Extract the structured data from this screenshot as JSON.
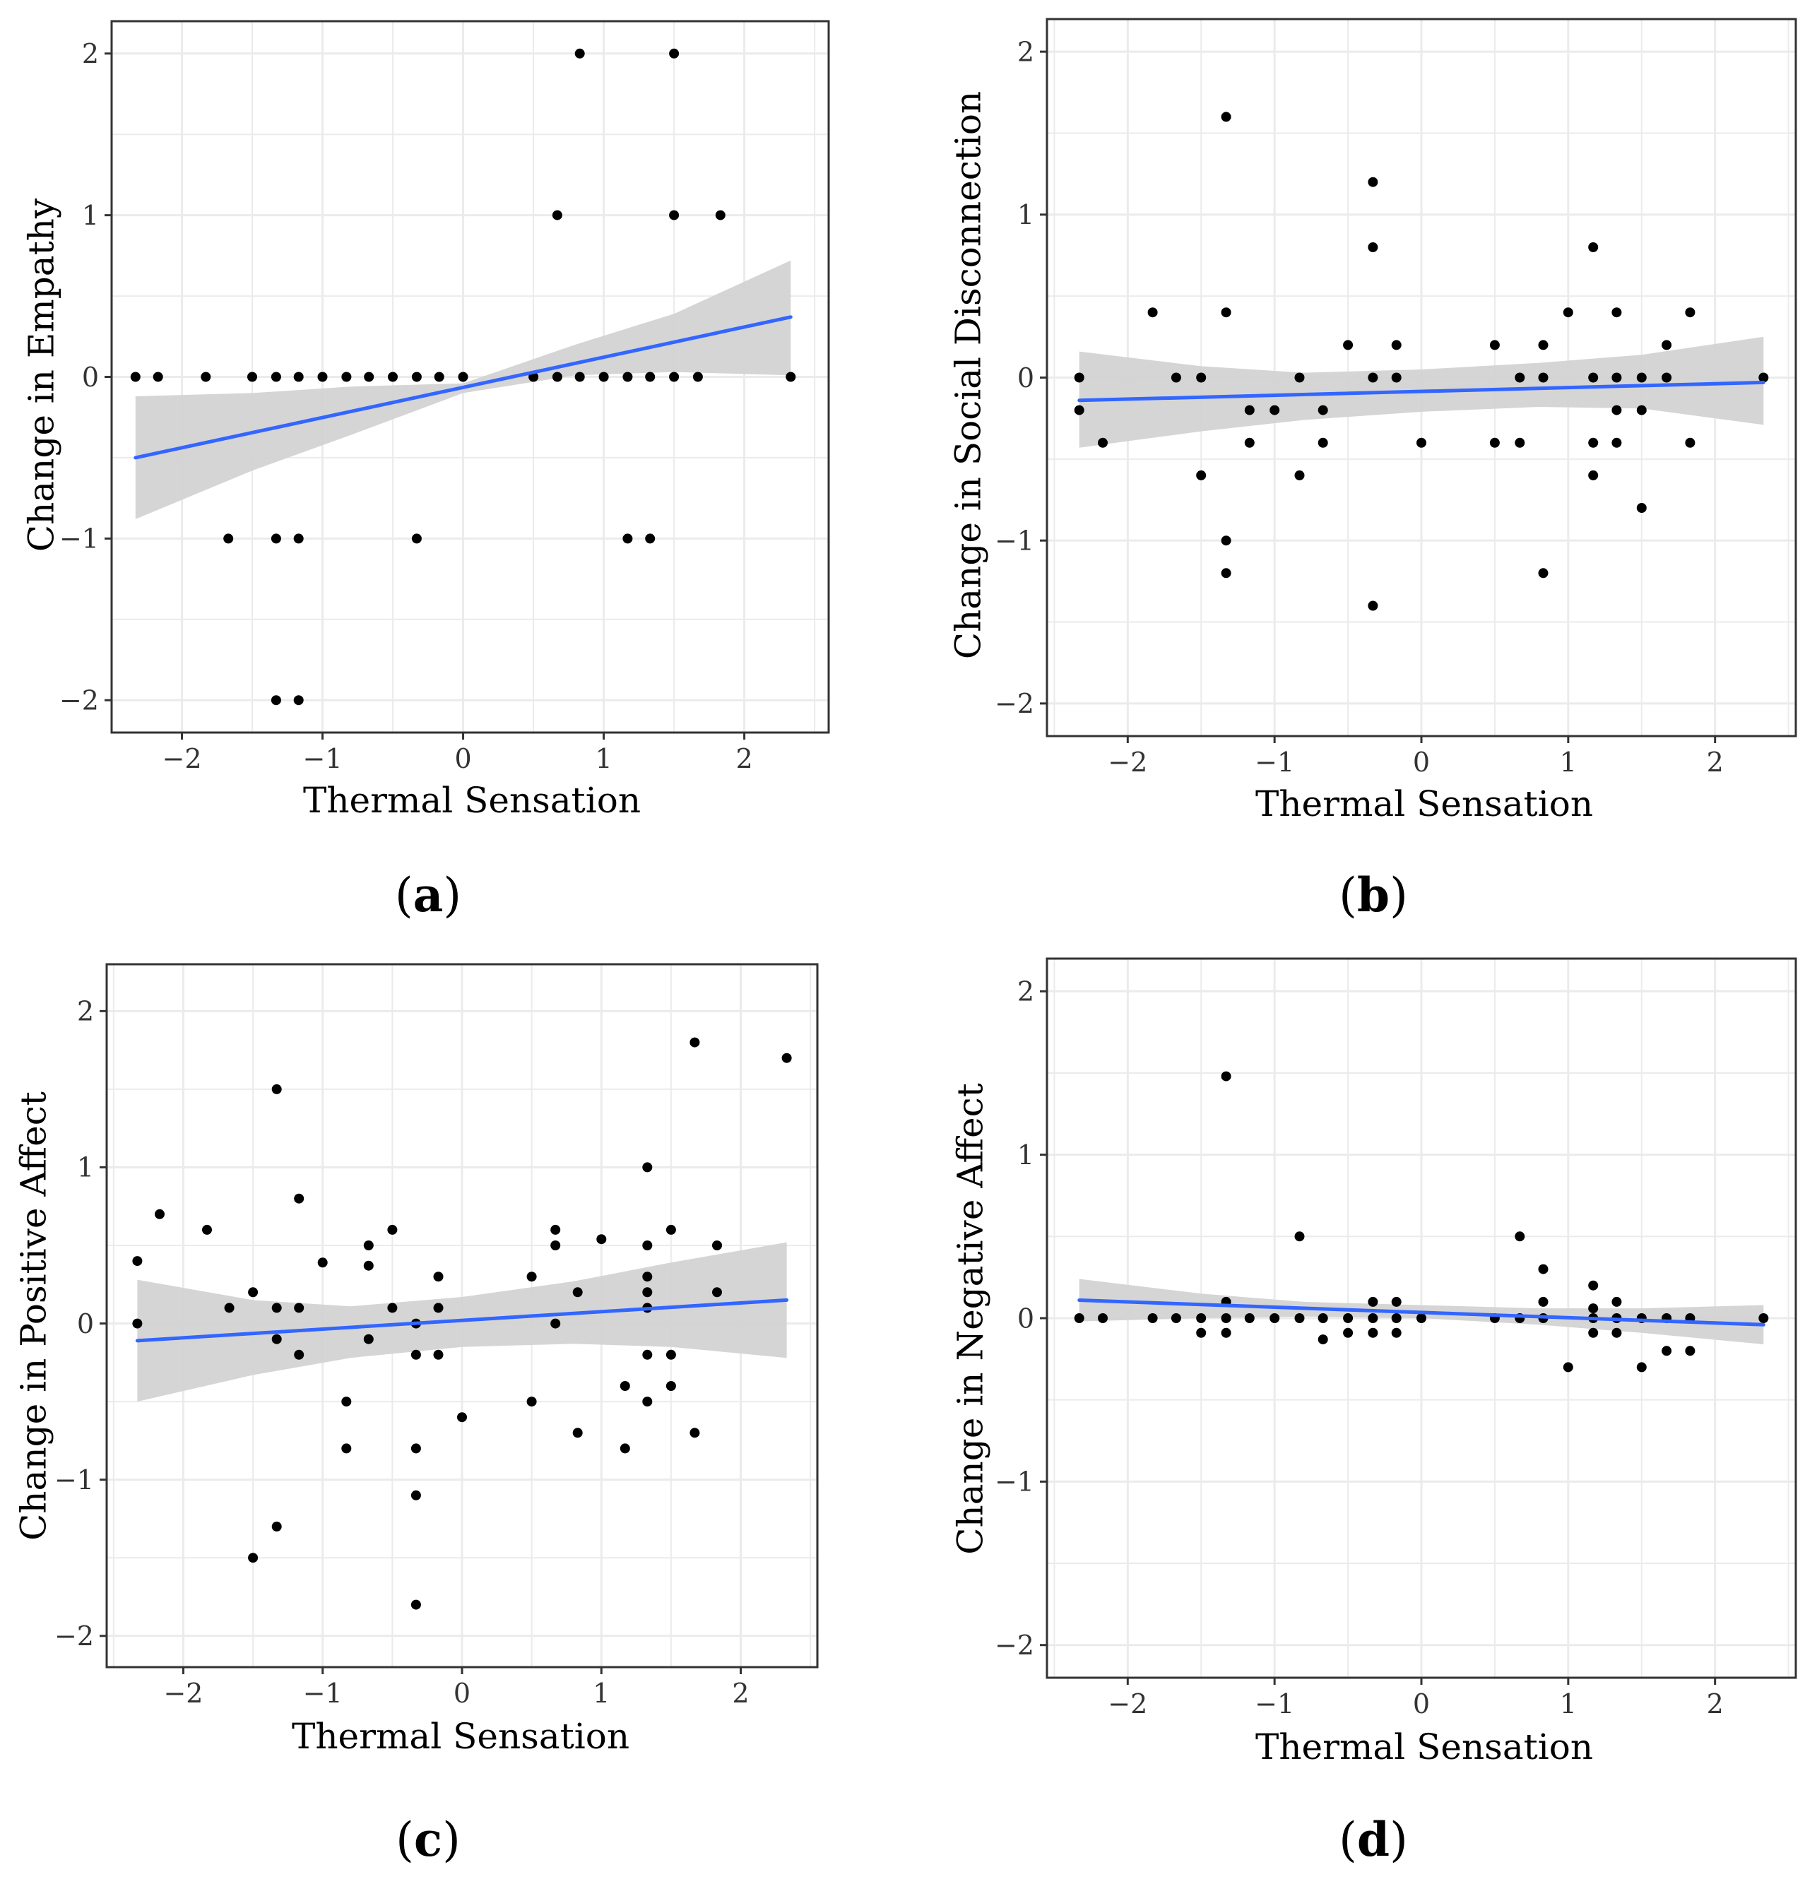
{
  "figure": {
    "panel_labels": [
      "(a)",
      "(b)",
      "(c)",
      "(d)"
    ],
    "colors": {
      "fit_line": "#3366FF",
      "confidence_band": "#D3D3D3",
      "points": "#000000",
      "grid": "#EBEBEB",
      "panel_border": "#333333"
    }
  },
  "chart_data": [
    {
      "type": "scatter",
      "panel": "(a)",
      "title": "",
      "xlabel": "Thermal Sensation",
      "ylabel": "Change in Empathy",
      "xlim": [
        -2.5,
        2.6
      ],
      "ylim": [
        -2.2,
        2.2
      ],
      "xticks": [
        -2,
        -1,
        0,
        1,
        2
      ],
      "yticks": [
        -2,
        -1,
        0,
        1,
        2
      ],
      "xtick_labels": [
        "−2",
        "−1",
        "0",
        "1",
        "2"
      ],
      "ytick_labels": [
        "−2",
        "−1",
        "0",
        "1",
        "2"
      ],
      "grid": true,
      "points": [
        [
          -2.33,
          0
        ],
        [
          -2.17,
          0
        ],
        [
          -1.83,
          0
        ],
        [
          -1.5,
          0
        ],
        [
          -1.33,
          0
        ],
        [
          -1.17,
          0
        ],
        [
          -1.0,
          0
        ],
        [
          -0.83,
          0
        ],
        [
          -0.67,
          0
        ],
        [
          -0.5,
          0
        ],
        [
          -0.33,
          0
        ],
        [
          -0.17,
          0
        ],
        [
          0,
          0
        ],
        [
          0.5,
          0
        ],
        [
          0.67,
          0
        ],
        [
          0.83,
          0
        ],
        [
          1.0,
          0
        ],
        [
          1.17,
          0
        ],
        [
          1.33,
          0
        ],
        [
          1.5,
          0
        ],
        [
          1.67,
          0
        ],
        [
          2.33,
          0
        ],
        [
          0.83,
          2
        ],
        [
          1.5,
          2
        ],
        [
          0.67,
          1
        ],
        [
          1.5,
          1
        ],
        [
          1.83,
          1
        ],
        [
          -1.67,
          -1
        ],
        [
          -1.33,
          -1
        ],
        [
          -1.17,
          -1
        ],
        [
          -0.33,
          -1
        ],
        [
          1.17,
          -1
        ],
        [
          1.33,
          -1
        ],
        [
          -1.33,
          -2
        ],
        [
          -1.17,
          -2
        ]
      ],
      "fit": {
        "x": [
          -2.33,
          2.33
        ],
        "y": [
          -0.5,
          0.37
        ]
      },
      "band": {
        "x": [
          -2.33,
          -1.5,
          -0.8,
          0,
          0.8,
          1.5,
          2.33
        ],
        "lower": [
          -0.88,
          -0.58,
          -0.36,
          -0.1,
          0.01,
          0.03,
          0.01
        ],
        "upper": [
          -0.12,
          -0.1,
          -0.06,
          -0.04,
          0.2,
          0.39,
          0.72
        ]
      }
    },
    {
      "type": "scatter",
      "panel": "(b)",
      "title": "",
      "xlabel": "Thermal Sensation",
      "ylabel": "Change in Social Disconnection",
      "xlim": [
        -2.55,
        2.55
      ],
      "ylim": [
        -2.2,
        2.2
      ],
      "xticks": [
        -2,
        -1,
        0,
        1,
        2
      ],
      "yticks": [
        -2,
        -1,
        0,
        1,
        2
      ],
      "xtick_labels": [
        "−2",
        "−1",
        "0",
        "1",
        "2"
      ],
      "ytick_labels": [
        "−2",
        "−1",
        "0",
        "1",
        "2"
      ],
      "grid": true,
      "points": [
        [
          -2.33,
          0
        ],
        [
          -2.33,
          -0.2
        ],
        [
          -2.17,
          -0.4
        ],
        [
          -1.83,
          0.4
        ],
        [
          -1.67,
          0
        ],
        [
          -1.5,
          0
        ],
        [
          -1.5,
          -0.6
        ],
        [
          -1.33,
          1.6
        ],
        [
          -1.33,
          0.4
        ],
        [
          -1.33,
          -1.0
        ],
        [
          -1.33,
          -1.2
        ],
        [
          -1.17,
          -0.2
        ],
        [
          -1.17,
          -0.4
        ],
        [
          -1.0,
          -0.2
        ],
        [
          -0.83,
          0
        ],
        [
          -0.83,
          -0.6
        ],
        [
          -0.67,
          -0.2
        ],
        [
          -0.67,
          -0.4
        ],
        [
          -0.5,
          0.2
        ],
        [
          -0.33,
          1.2
        ],
        [
          -0.33,
          0.8
        ],
        [
          -0.33,
          0
        ],
        [
          -0.33,
          -1.4
        ],
        [
          -0.17,
          0.2
        ],
        [
          -0.17,
          0
        ],
        [
          0,
          -0.4
        ],
        [
          0.5,
          0.2
        ],
        [
          0.5,
          -0.4
        ],
        [
          0.67,
          0
        ],
        [
          0.67,
          -0.4
        ],
        [
          0.83,
          0.2
        ],
        [
          0.83,
          0
        ],
        [
          0.83,
          -1.2
        ],
        [
          1.0,
          0.4
        ],
        [
          1.17,
          0.8
        ],
        [
          1.17,
          0
        ],
        [
          1.17,
          -0.4
        ],
        [
          1.17,
          -0.6
        ],
        [
          1.33,
          0.4
        ],
        [
          1.33,
          0
        ],
        [
          1.33,
          -0.2
        ],
        [
          1.33,
          -0.4
        ],
        [
          1.5,
          0
        ],
        [
          1.5,
          -0.2
        ],
        [
          1.5,
          -0.8
        ],
        [
          1.67,
          0.2
        ],
        [
          1.67,
          0
        ],
        [
          1.83,
          0.4
        ],
        [
          1.83,
          -0.4
        ],
        [
          2.33,
          0
        ]
      ],
      "fit": {
        "x": [
          -2.33,
          2.33
        ],
        "y": [
          -0.14,
          -0.03
        ]
      },
      "band": {
        "x": [
          -2.33,
          -1.5,
          -0.8,
          0,
          0.8,
          1.5,
          2.33
        ],
        "lower": [
          -0.43,
          -0.33,
          -0.26,
          -0.21,
          -0.18,
          -0.19,
          -0.29
        ],
        "upper": [
          0.16,
          0.07,
          0.03,
          0.05,
          0.09,
          0.14,
          0.25
        ]
      }
    },
    {
      "type": "scatter",
      "panel": "(c)",
      "title": "",
      "xlabel": "Thermal Sensation",
      "ylabel": "Change in Positive Affect",
      "xlim": [
        -2.55,
        2.55
      ],
      "ylim": [
        -2.2,
        2.3
      ],
      "xticks": [
        -2,
        -1,
        0,
        1,
        2
      ],
      "yticks": [
        -2,
        -1,
        0,
        1,
        2
      ],
      "xtick_labels": [
        "−2",
        "−1",
        "0",
        "1",
        "2"
      ],
      "ytick_labels": [
        "−2",
        "−1",
        "0",
        "1",
        "2"
      ],
      "grid": true,
      "points": [
        [
          -2.33,
          0.4
        ],
        [
          -2.33,
          0
        ],
        [
          -2.17,
          0.7
        ],
        [
          -1.83,
          0.6
        ],
        [
          -1.67,
          0.1
        ],
        [
          -1.5,
          0.2
        ],
        [
          -1.5,
          -1.5
        ],
        [
          -1.33,
          1.5
        ],
        [
          -1.33,
          0.1
        ],
        [
          -1.33,
          -0.1
        ],
        [
          -1.33,
          -1.3
        ],
        [
          -1.17,
          0.8
        ],
        [
          -1.17,
          0.1
        ],
        [
          -1.17,
          -0.2
        ],
        [
          -1.0,
          0.39
        ],
        [
          -0.83,
          -0.5
        ],
        [
          -0.83,
          -0.8
        ],
        [
          -0.67,
          0.5
        ],
        [
          -0.67,
          0.37
        ],
        [
          -0.67,
          -0.1
        ],
        [
          -0.5,
          0.6
        ],
        [
          -0.5,
          0.1
        ],
        [
          -0.33,
          0
        ],
        [
          -0.33,
          -0.2
        ],
        [
          -0.33,
          -0.8
        ],
        [
          -0.33,
          -1.1
        ],
        [
          -0.33,
          -1.8
        ],
        [
          -0.17,
          0.3
        ],
        [
          -0.17,
          0.1
        ],
        [
          -0.17,
          -0.2
        ],
        [
          0,
          -0.6
        ],
        [
          0.5,
          0.3
        ],
        [
          0.5,
          -0.5
        ],
        [
          0.67,
          0.6
        ],
        [
          0.67,
          0.5
        ],
        [
          0.67,
          0
        ],
        [
          0.83,
          0.2
        ],
        [
          0.83,
          -0.7
        ],
        [
          1.0,
          0.54
        ],
        [
          1.17,
          -0.4
        ],
        [
          1.17,
          -0.8
        ],
        [
          1.33,
          1.0
        ],
        [
          1.33,
          0.5
        ],
        [
          1.33,
          0.3
        ],
        [
          1.33,
          0.2
        ],
        [
          1.33,
          0.1
        ],
        [
          1.33,
          -0.2
        ],
        [
          1.33,
          -0.5
        ],
        [
          1.5,
          0.6
        ],
        [
          1.5,
          -0.2
        ],
        [
          1.5,
          -0.4
        ],
        [
          1.67,
          1.8
        ],
        [
          1.67,
          -0.7
        ],
        [
          1.83,
          0.5
        ],
        [
          1.83,
          0.2
        ],
        [
          2.33,
          1.7
        ]
      ],
      "fit": {
        "x": [
          -2.33,
          2.33
        ],
        "y": [
          -0.11,
          0.15
        ]
      },
      "band": {
        "x": [
          -2.33,
          -1.5,
          -0.8,
          0,
          0.8,
          1.5,
          2.33
        ],
        "lower": [
          -0.5,
          -0.33,
          -0.22,
          -0.15,
          -0.13,
          -0.15,
          -0.22
        ],
        "upper": [
          0.28,
          0.15,
          0.11,
          0.17,
          0.27,
          0.39,
          0.52
        ]
      }
    },
    {
      "type": "scatter",
      "panel": "(d)",
      "title": "",
      "xlabel": "Thermal Sensation",
      "ylabel": "Change in Negative Affect",
      "xlim": [
        -2.55,
        2.55
      ],
      "ylim": [
        -2.2,
        2.2
      ],
      "xticks": [
        -2,
        -1,
        0,
        1,
        2
      ],
      "yticks": [
        -2,
        -1,
        0,
        1,
        2
      ],
      "xtick_labels": [
        "−2",
        "−1",
        "0",
        "1",
        "2"
      ],
      "ytick_labels": [
        "−2",
        "−1",
        "0",
        "1",
        "2"
      ],
      "grid": true,
      "points": [
        [
          -2.33,
          0
        ],
        [
          -2.17,
          0
        ],
        [
          -1.83,
          0
        ],
        [
          -1.67,
          0
        ],
        [
          -1.5,
          0
        ],
        [
          -1.5,
          -0.09
        ],
        [
          -1.33,
          1.48
        ],
        [
          -1.33,
          0.1
        ],
        [
          -1.33,
          0
        ],
        [
          -1.33,
          -0.09
        ],
        [
          -1.17,
          0
        ],
        [
          -1.0,
          0
        ],
        [
          -0.83,
          0.5
        ],
        [
          -0.83,
          0
        ],
        [
          -0.67,
          0
        ],
        [
          -0.67,
          -0.13
        ],
        [
          -0.5,
          0
        ],
        [
          -0.5,
          -0.09
        ],
        [
          -0.33,
          0.1
        ],
        [
          -0.33,
          0
        ],
        [
          -0.33,
          -0.09
        ],
        [
          -0.17,
          0.1
        ],
        [
          -0.17,
          0
        ],
        [
          -0.17,
          -0.09
        ],
        [
          0,
          0
        ],
        [
          0.5,
          0
        ],
        [
          0.67,
          0.5
        ],
        [
          0.67,
          0
        ],
        [
          0.83,
          0.3
        ],
        [
          0.83,
          0.1
        ],
        [
          0.83,
          0
        ],
        [
          1.0,
          -0.3
        ],
        [
          1.17,
          0.2
        ],
        [
          1.17,
          0.06
        ],
        [
          1.17,
          0
        ],
        [
          1.17,
          -0.09
        ],
        [
          1.33,
          0.1
        ],
        [
          1.33,
          0
        ],
        [
          1.33,
          -0.09
        ],
        [
          1.5,
          0
        ],
        [
          1.5,
          -0.3
        ],
        [
          1.67,
          0
        ],
        [
          1.67,
          -0.2
        ],
        [
          1.83,
          0
        ],
        [
          1.83,
          -0.2
        ],
        [
          2.33,
          0
        ]
      ],
      "fit": {
        "x": [
          -2.33,
          2.33
        ],
        "y": [
          0.11,
          -0.04
        ]
      },
      "band": {
        "x": [
          -2.33,
          -1.5,
          -0.8,
          0,
          0.8,
          1.5,
          2.33
        ],
        "lower": [
          -0.02,
          0.0,
          0.01,
          0.0,
          -0.04,
          -0.09,
          -0.16
        ],
        "upper": [
          0.24,
          0.15,
          0.1,
          0.08,
          0.06,
          0.06,
          0.08
        ]
      }
    }
  ]
}
